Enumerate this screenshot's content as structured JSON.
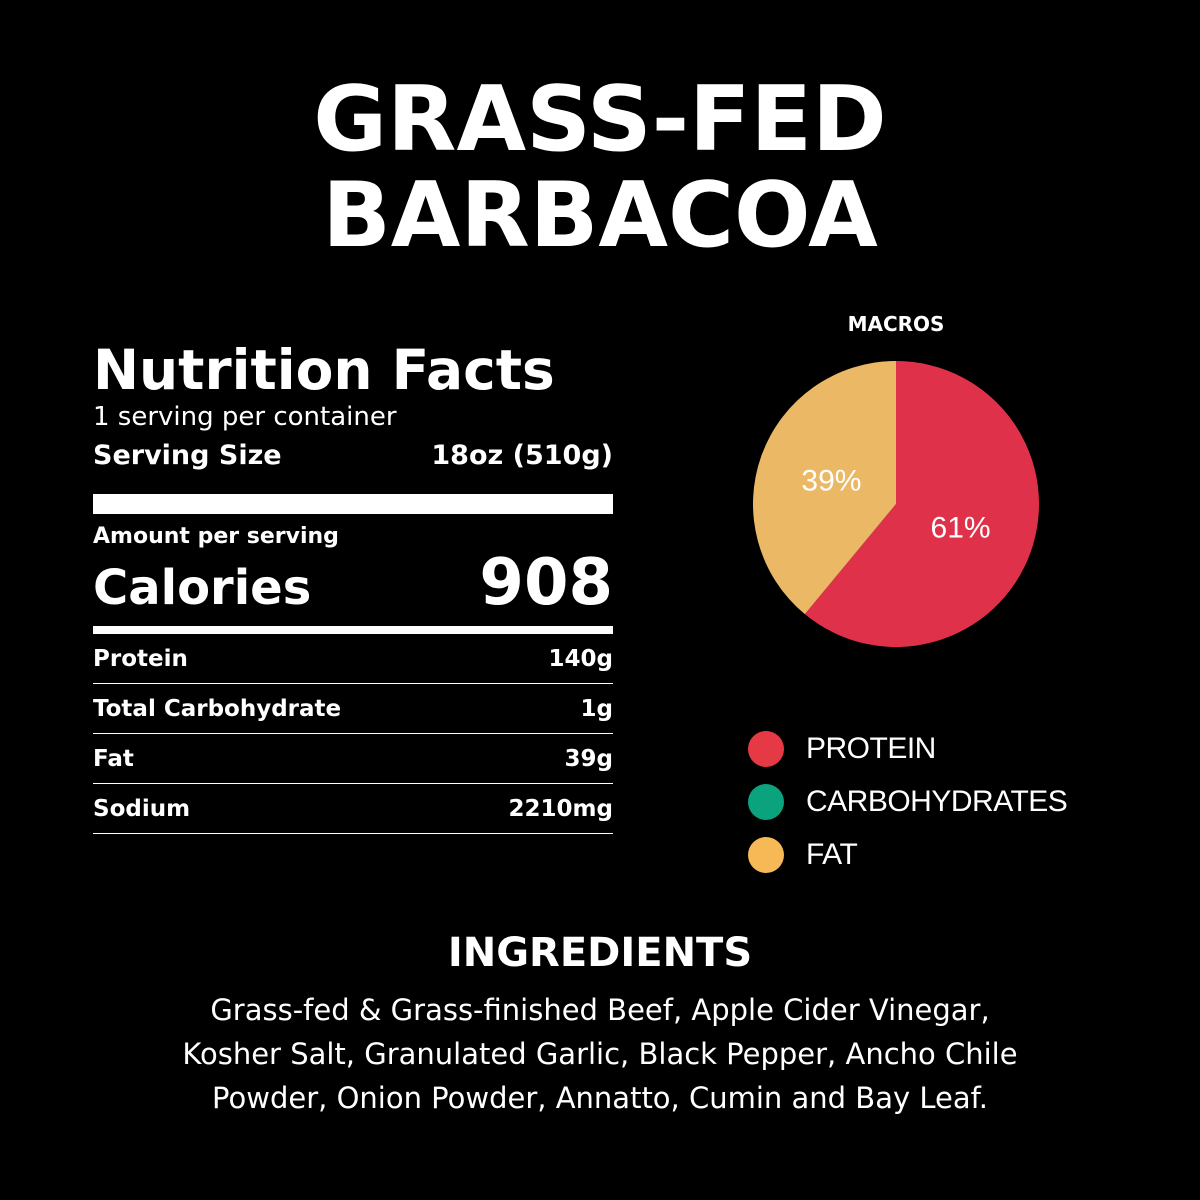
{
  "title": {
    "line1": "GRASS-FED",
    "line2": "BARBACOA"
  },
  "nutrition": {
    "heading": "Nutrition Facts",
    "servings_per_container": "1 serving per container",
    "serving_size_label": "Serving Size",
    "serving_size_value": "18oz (510g)",
    "amount_per_serving": "Amount per serving",
    "calories_label": "Calories",
    "calories_value": "908",
    "rows": [
      {
        "label": "Protein",
        "value": "140g"
      },
      {
        "label": "Total Carbohydrate",
        "value": "1g"
      },
      {
        "label": "Fat",
        "value": "39g"
      },
      {
        "label": "Sodium",
        "value": "2210mg"
      }
    ]
  },
  "macros": {
    "title": "MACROS",
    "legend": [
      {
        "label": "PROTEIN",
        "color": "#e63946"
      },
      {
        "label": "CARBOHYDRATES",
        "color": "#0ba37e"
      },
      {
        "label": "FAT",
        "color": "#f7b955"
      }
    ]
  },
  "chart_data": {
    "type": "pie",
    "title": "MACROS",
    "slices": [
      {
        "name": "PROTEIN",
        "value": 61,
        "label": "61%",
        "color": "#e0314a"
      },
      {
        "name": "FAT",
        "value": 39,
        "label": "39%",
        "color": "#ebb866"
      }
    ]
  },
  "ingredients": {
    "title": "INGREDIENTS",
    "lines": [
      "Grass-fed & Grass-finished Beef, Apple Cider Vinegar,",
      "Kosher Salt, Granulated Garlic, Black Pepper, Ancho Chile",
      "Powder, Onion Powder, Annatto, Cumin and Bay Leaf."
    ]
  }
}
